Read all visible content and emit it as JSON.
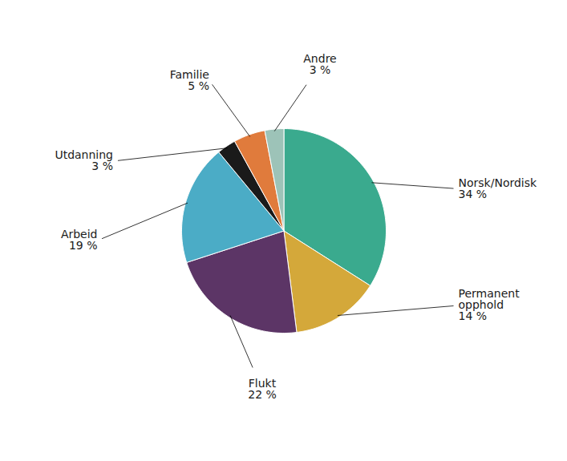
{
  "chart_data": {
    "type": "pie",
    "categories": [
      "Norsk/Nordisk",
      "Permanent\nopphold",
      "Flukt",
      "Arbeid",
      "Utdanning",
      "Familie",
      "Andre"
    ],
    "values": [
      34,
      14,
      22,
      19,
      3,
      5,
      3
    ],
    "value_labels": [
      "34 %",
      "14 %",
      "22 %",
      "19 %",
      "3 %",
      "5 %",
      "3 %"
    ],
    "colors": [
      "#3aaa8e",
      "#d4a83a",
      "#5c3566",
      "#4bacc6",
      "#1a1a1a",
      "#e07b3c",
      "#9dc3b8"
    ]
  }
}
